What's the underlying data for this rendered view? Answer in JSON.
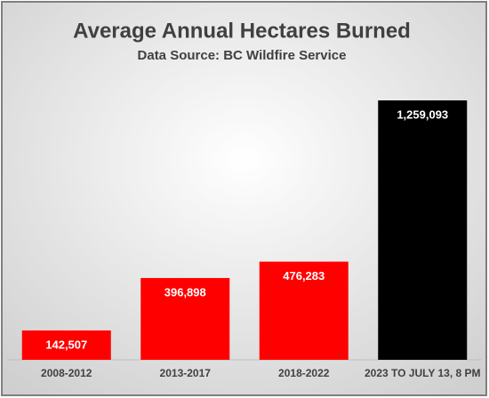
{
  "chart_data": {
    "type": "bar",
    "title": "Average Annual Hectares Burned",
    "subtitle": "Data Source: BC Wildfire Service",
    "categories": [
      "2008-2012",
      "2013-2017",
      "2018-2022",
      "2023 TO JULY 13, 8 PM"
    ],
    "values": [
      142507,
      396898,
      476283,
      1259093
    ],
    "value_labels": [
      "142,507",
      "396,898",
      "476,283",
      "1,259,093"
    ],
    "colors": [
      "#ff0000",
      "#ff0000",
      "#ff0000",
      "#000000"
    ]
  }
}
